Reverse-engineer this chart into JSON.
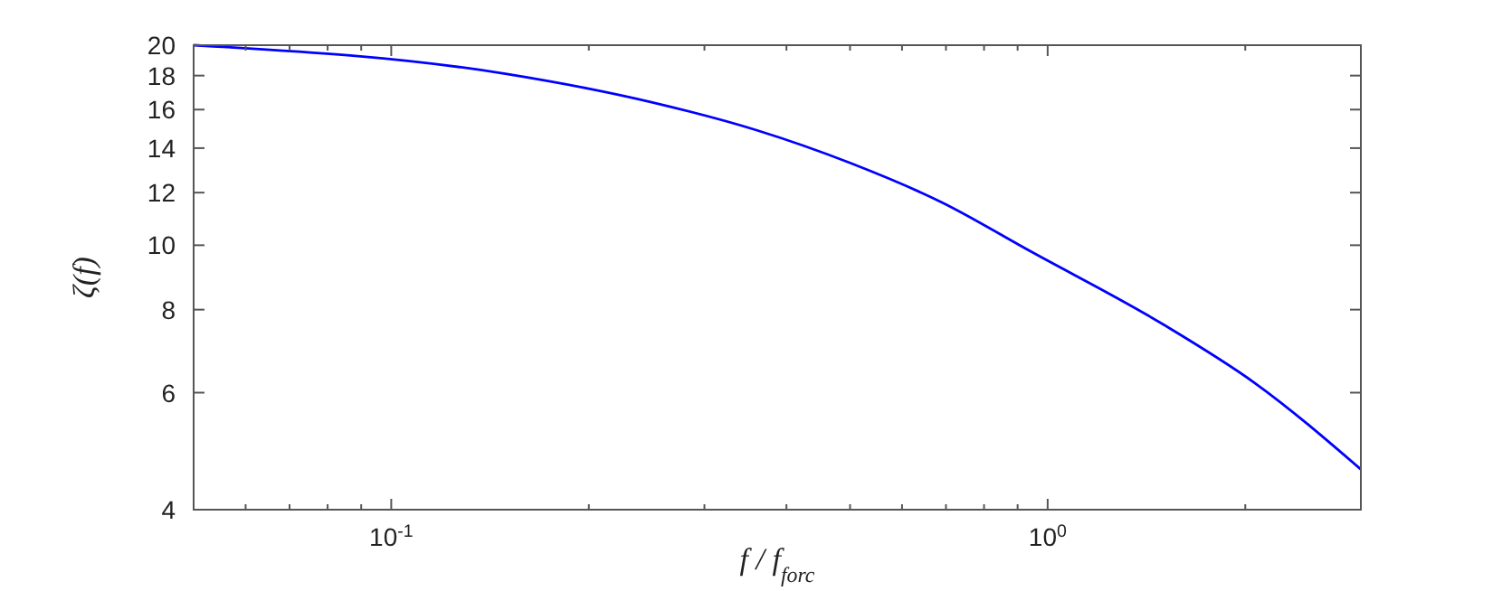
{
  "chart_data": {
    "type": "line",
    "xlabel": "f / f$_{forc}$",
    "ylabel": "ζ(f)",
    "log": "xy",
    "xlim": [
      0.05,
      3
    ],
    "ylim": [
      4,
      20
    ],
    "xticks": [
      {
        "value": 0.06,
        "label": null
      },
      {
        "value": 0.07,
        "label": null
      },
      {
        "value": 0.08,
        "label": null
      },
      {
        "value": 0.09,
        "label": null
      },
      {
        "value": 0.1,
        "label": "10$^{-1}$"
      },
      {
        "value": 0.2,
        "label": null
      },
      {
        "value": 0.3,
        "label": null
      },
      {
        "value": 0.4,
        "label": null
      },
      {
        "value": 0.5,
        "label": null
      },
      {
        "value": 0.6,
        "label": null
      },
      {
        "value": 0.7,
        "label": null
      },
      {
        "value": 0.8,
        "label": null
      },
      {
        "value": 0.9,
        "label": null
      },
      {
        "value": 1,
        "label": "10$^{0}$"
      },
      {
        "value": 2,
        "label": null
      },
      {
        "value": 3,
        "label": null
      }
    ],
    "yticks": [
      4,
      6,
      8,
      10,
      12,
      14,
      16,
      18,
      20
    ],
    "grid": false,
    "marker": "none",
    "line_style": "solid",
    "series": [
      {
        "color": "#0000ff",
        "x": [
          0.05,
          0.15,
          0.25,
          0.36,
          0.5,
          0.69,
          0.94,
          1.5,
          2.07,
          3.0
        ],
        "values": [
          20,
          18.1,
          16.4,
          14.9,
          13.3,
          11.6,
          9.8,
          7.6,
          6.2,
          4.6
        ]
      }
    ]
  }
}
